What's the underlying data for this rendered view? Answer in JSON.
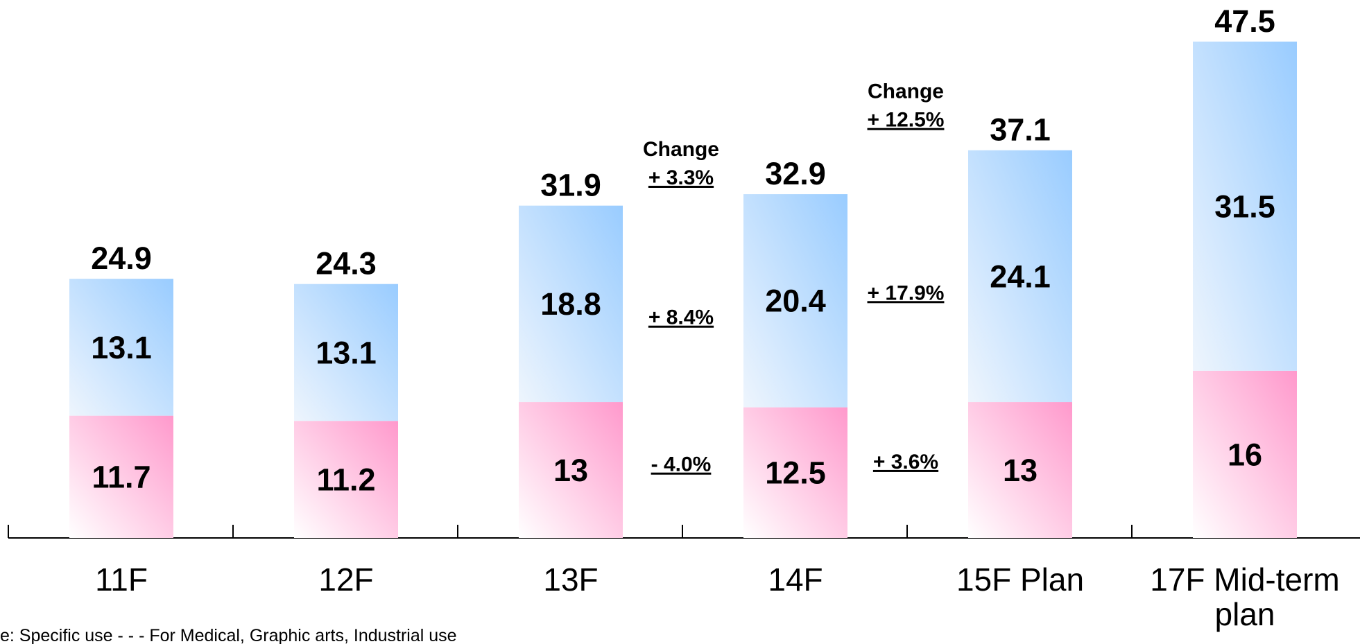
{
  "chart_data": {
    "type": "stacked_bar",
    "categories": [
      "11F",
      "12F",
      "13F",
      "14F",
      "15F Plan",
      "17F Mid-term plan"
    ],
    "series": [
      {
        "color": "#ff99cc",
        "values": [
          11.7,
          11.2,
          13.0,
          12.5,
          13.0,
          16.0
        ]
      },
      {
        "color": "#99ccff",
        "values": [
          13.1,
          13.1,
          18.8,
          20.4,
          24.1,
          31.5
        ]
      }
    ],
    "totals": [
      24.9,
      24.3,
      31.9,
      32.9,
      37.1,
      47.5
    ],
    "annotations": [
      {
        "header": "Change",
        "total": "+ 3.3%",
        "top": "+ 8.4%",
        "bottom": "- 4.0%"
      },
      {
        "header": "Change",
        "total": "+ 12.5%",
        "top": "+ 17.9%",
        "bottom": "+ 3.6%"
      }
    ],
    "footnote": "e: Specific use - - - For Medical, Graphic arts, Industrial use"
  }
}
